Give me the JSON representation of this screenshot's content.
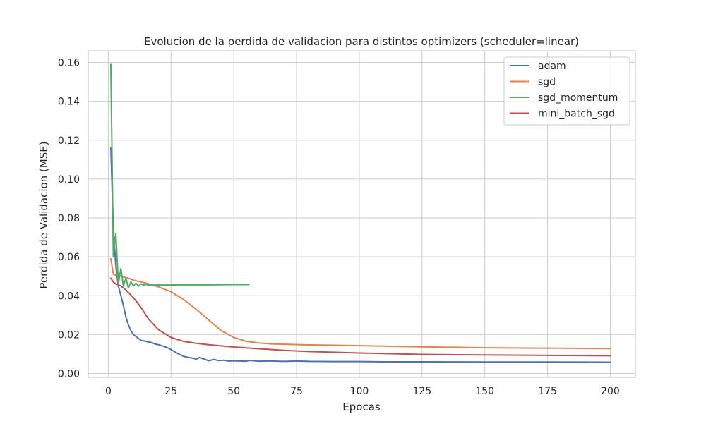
{
  "chart_data": {
    "type": "line",
    "title": "Evolucion de la perdida de validacion para distintos optimizers (scheduler=linear)",
    "xlabel": "Epocas",
    "ylabel": "Perdida de Validacion (MSE)",
    "xlim": [
      -8,
      210
    ],
    "ylim": [
      -0.002,
      0.166
    ],
    "xticks": [
      0,
      25,
      50,
      75,
      100,
      125,
      150,
      175,
      200
    ],
    "yticks": [
      0.0,
      0.02,
      0.04,
      0.06,
      0.08,
      0.1,
      0.12,
      0.14,
      0.16
    ],
    "ytick_labels": [
      "0.00",
      "0.02",
      "0.04",
      "0.06",
      "0.08",
      "0.10",
      "0.12",
      "0.14",
      "0.16"
    ],
    "grid": true,
    "legend_position": "top-right",
    "series": [
      {
        "name": "adam",
        "color": "#4c72b0",
        "x": [
          1,
          2,
          3,
          4,
          5,
          6,
          7,
          8,
          9,
          10,
          11,
          12,
          13,
          14,
          15,
          16,
          17,
          18,
          19,
          20,
          22,
          24,
          26,
          28,
          30,
          32,
          34,
          35,
          36,
          38,
          40,
          42,
          44,
          46,
          48,
          50,
          55,
          56,
          60,
          65,
          70,
          75,
          80,
          90,
          100,
          110,
          125,
          150,
          175,
          200
        ],
        "y": [
          0.116,
          0.075,
          0.055,
          0.045,
          0.04,
          0.035,
          0.029,
          0.025,
          0.022,
          0.02,
          0.019,
          0.018,
          0.017,
          0.0168,
          0.0165,
          0.0162,
          0.016,
          0.0155,
          0.015,
          0.0148,
          0.014,
          0.013,
          0.0115,
          0.01,
          0.0088,
          0.0082,
          0.0078,
          0.0072,
          0.0082,
          0.0075,
          0.0065,
          0.0072,
          0.0066,
          0.0068,
          0.0064,
          0.0065,
          0.0063,
          0.0067,
          0.0063,
          0.0064,
          0.0062,
          0.0064,
          0.0062,
          0.0061,
          0.0061,
          0.006,
          0.006,
          0.0059,
          0.0059,
          0.0058
        ]
      },
      {
        "name": "sgd",
        "color": "#dd8452",
        "x": [
          1,
          2,
          3,
          5,
          8,
          10,
          15,
          20,
          25,
          30,
          35,
          40,
          45,
          50,
          55,
          60,
          65,
          70,
          80,
          90,
          100,
          125,
          150,
          175,
          200
        ],
        "y": [
          0.059,
          0.051,
          0.0505,
          0.05,
          0.049,
          0.048,
          0.0465,
          0.0445,
          0.042,
          0.038,
          0.033,
          0.0275,
          0.022,
          0.0185,
          0.0165,
          0.0157,
          0.0152,
          0.015,
          0.0147,
          0.0145,
          0.0143,
          0.0137,
          0.0132,
          0.013,
          0.0128
        ]
      },
      {
        "name": "sgd_momentum",
        "color": "#55a868",
        "x": [
          1,
          2,
          3,
          4,
          5,
          6,
          7,
          8,
          9,
          10,
          11,
          12,
          13,
          14,
          15,
          16,
          17,
          18,
          20,
          25,
          30,
          40,
          50,
          56
        ],
        "y": [
          0.159,
          0.06,
          0.072,
          0.046,
          0.054,
          0.045,
          0.049,
          0.044,
          0.047,
          0.045,
          0.0465,
          0.045,
          0.046,
          0.0455,
          0.0458,
          0.0455,
          0.0456,
          0.0455,
          0.0455,
          0.0455,
          0.0456,
          0.0456,
          0.0457,
          0.0457
        ]
      },
      {
        "name": "mini_batch_sgd",
        "color": "#c44e52",
        "x": [
          1,
          2,
          3,
          5,
          7,
          10,
          13,
          16,
          20,
          25,
          30,
          35,
          40,
          50,
          60,
          70,
          80,
          100,
          125,
          150,
          175,
          200
        ],
        "y": [
          0.049,
          0.047,
          0.046,
          0.045,
          0.043,
          0.039,
          0.034,
          0.028,
          0.0225,
          0.0185,
          0.0165,
          0.0155,
          0.0148,
          0.0136,
          0.0127,
          0.0119,
          0.0113,
          0.0105,
          0.0098,
          0.0095,
          0.0093,
          0.0091
        ]
      }
    ]
  }
}
